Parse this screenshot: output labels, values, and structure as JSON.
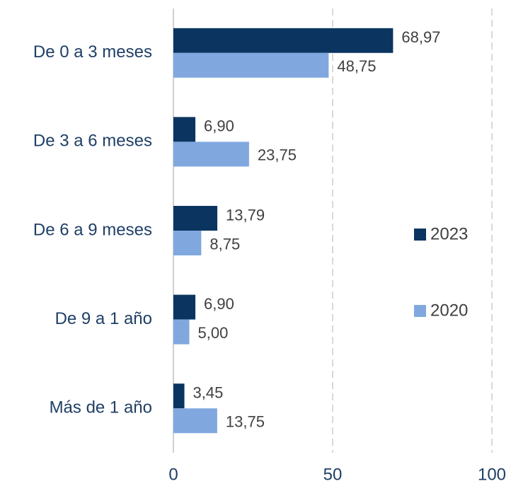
{
  "chart_data": {
    "type": "bar",
    "orientation": "horizontal",
    "categories": [
      "De 0 a 3 meses",
      "De 3 a 6 meses",
      "De 6 a 9 meses",
      "De 9 a 1 año",
      "Más de 1 año"
    ],
    "series": [
      {
        "name": "2023",
        "color": "#0b3560",
        "values": [
          68.97,
          6.9,
          13.79,
          6.9,
          3.45
        ],
        "value_labels": [
          "68,97",
          "6,90",
          "13,79",
          "6,90",
          "3,45"
        ]
      },
      {
        "name": "2020",
        "color": "#80a8df",
        "values": [
          48.75,
          23.75,
          8.75,
          5.0,
          13.75
        ],
        "value_labels": [
          "48,75",
          "23,75",
          "8,75",
          "5,00",
          "13,75"
        ]
      }
    ],
    "xlim": [
      0,
      100
    ],
    "xticks": [
      0,
      50,
      100
    ],
    "grid": true,
    "legend": "right"
  }
}
